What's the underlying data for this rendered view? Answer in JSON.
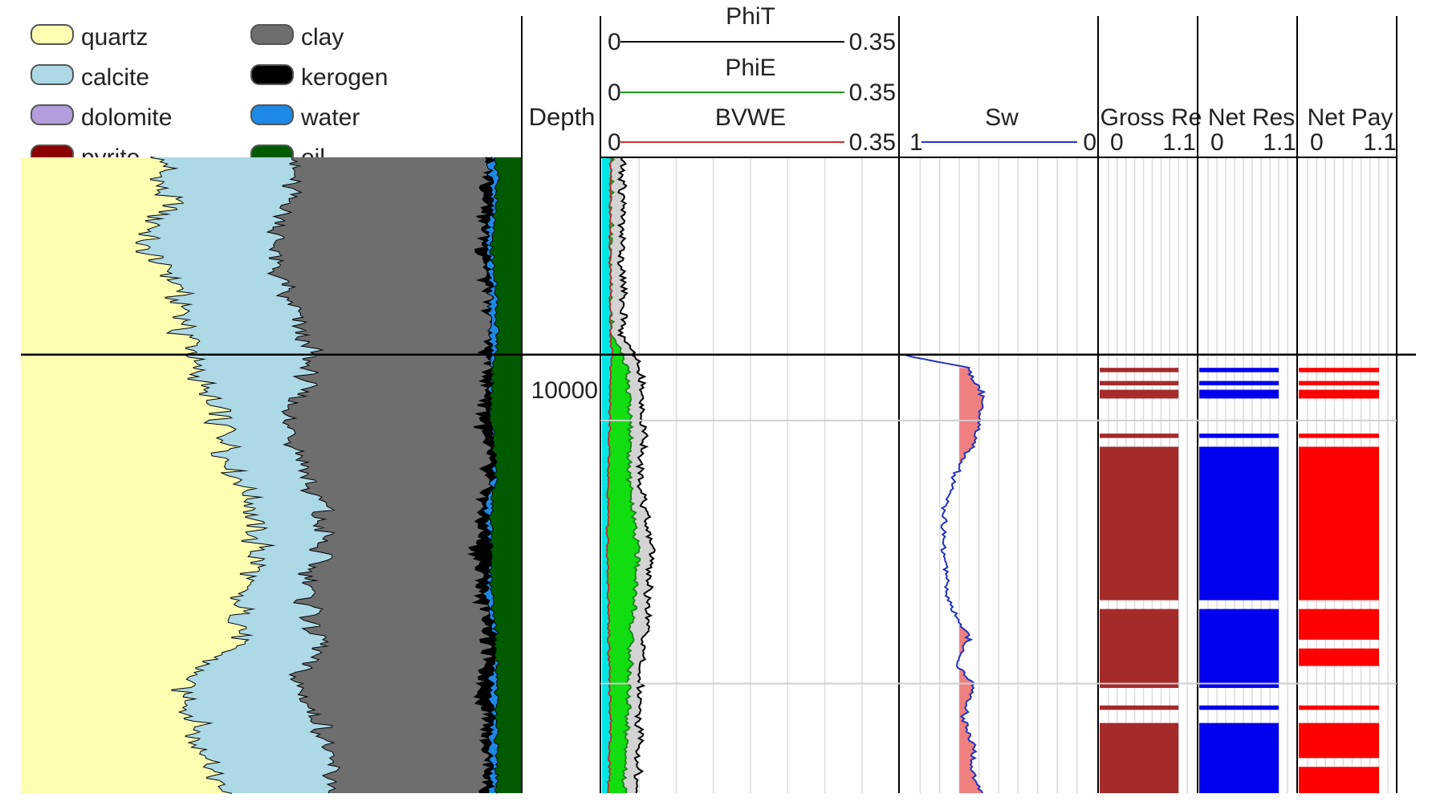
{
  "chart_data": {
    "type": "area",
    "legend": {
      "placement": "top-left",
      "items": [
        {
          "label": "quartz",
          "color": "#FFFFB2"
        },
        {
          "label": "calcite",
          "color": "#ADD8E6"
        },
        {
          "label": "dolomite",
          "color": "#B39DDB"
        },
        {
          "label": "pyrite",
          "color": "#8B0000"
        },
        {
          "label": "clay",
          "color": "#6E6E6E"
        },
        {
          "label": "kerogen",
          "color": "#000000"
        },
        {
          "label": "water",
          "color": "#1E88E5"
        },
        {
          "label": "oil",
          "color": "#005A00"
        }
      ]
    },
    "depth": {
      "header": "Depth",
      "range": [
        9940,
        10085
      ],
      "ticks": [
        10000,
        10060
      ],
      "tick_labels": [
        "10000",
        ""
      ],
      "marker_line": 9985
    },
    "depth_samples": [
      9940,
      9950,
      9960,
      9970,
      9980,
      9985,
      9990,
      10000,
      10010,
      10020,
      10030,
      10040,
      10050,
      10060,
      10070,
      10080,
      10085
    ],
    "lithology_track": {
      "stack_order": [
        "quartz",
        "calcite",
        "clay",
        "kerogen",
        "water",
        "oil"
      ],
      "x_range": [
        0,
        1
      ],
      "cumulative": {
        "quartz": [
          0.28,
          0.3,
          0.25,
          0.31,
          0.33,
          0.34,
          0.36,
          0.4,
          0.42,
          0.46,
          0.48,
          0.43,
          0.45,
          0.33,
          0.35,
          0.38,
          0.4
        ],
        "calcite": [
          0.55,
          0.54,
          0.5,
          0.53,
          0.56,
          0.58,
          0.57,
          0.53,
          0.56,
          0.6,
          0.6,
          0.57,
          0.6,
          0.55,
          0.6,
          0.62,
          0.63
        ],
        "clay": [
          0.93,
          0.93,
          0.92,
          0.93,
          0.94,
          0.93,
          0.93,
          0.92,
          0.93,
          0.92,
          0.91,
          0.92,
          0.93,
          0.92,
          0.93,
          0.93,
          0.93
        ],
        "kerogen": [
          0.94,
          0.94,
          0.93,
          0.94,
          0.94,
          0.94,
          0.94,
          0.94,
          0.95,
          0.93,
          0.94,
          0.93,
          0.95,
          0.94,
          0.94,
          0.94,
          0.94
        ],
        "water": [
          0.95,
          0.95,
          0.94,
          0.95,
          0.95,
          0.95,
          0.94,
          0.94,
          0.95,
          0.94,
          0.94,
          0.94,
          0.95,
          0.95,
          0.95,
          0.95,
          0.95
        ],
        "oil": [
          1,
          1,
          1,
          1,
          1,
          1,
          1,
          1,
          1,
          1,
          1,
          1,
          1,
          1,
          1,
          1,
          1
        ]
      }
    },
    "porosity_track": {
      "x_range": [
        0,
        0.35
      ],
      "headers": [
        {
          "name": "PhiT",
          "min": "0",
          "max": "0.35",
          "color": "#000000"
        },
        {
          "name": "PhiE",
          "min": "0",
          "max": "0.35",
          "color": "#1E9E1E"
        },
        {
          "name": "BVWE",
          "min": "0",
          "max": "0.35",
          "color": "#D03030"
        }
      ],
      "fills": {
        "bvwe": "#00E5E5",
        "phie": "#11DD11",
        "phit": "#D3D3D3"
      },
      "curves": {
        "PhiT": [
          0.025,
          0.025,
          0.023,
          0.025,
          0.024,
          0.04,
          0.045,
          0.05,
          0.045,
          0.05,
          0.06,
          0.055,
          0.05,
          0.045,
          0.045,
          0.043,
          0.04
        ],
        "PhiE": [
          0.01,
          0.01,
          0.009,
          0.01,
          0.01,
          0.025,
          0.03,
          0.035,
          0.032,
          0.036,
          0.042,
          0.038,
          0.034,
          0.032,
          0.03,
          0.028,
          0.026
        ],
        "BVWE": [
          0.01,
          0.01,
          0.009,
          0.01,
          0.01,
          0.012,
          0.01,
          0.009,
          0.008,
          0.007,
          0.006,
          0.007,
          0.008,
          0.009,
          0.01,
          0.008,
          0.007
        ]
      }
    },
    "saturation_track": {
      "x_range": [
        1,
        0
      ],
      "header": {
        "name": "Sw",
        "min": "1",
        "max": "0",
        "color": "#2233BB"
      },
      "fill": "#F08080",
      "start_depth": 9985,
      "depth_samples": [
        9985,
        9988,
        9995,
        10000,
        10005,
        10010,
        10020,
        10030,
        10040,
        10050,
        10055,
        10060,
        10068,
        10075,
        10080,
        10085
      ],
      "curve": [
        0.99,
        0.66,
        0.57,
        0.6,
        0.62,
        0.7,
        0.78,
        0.78,
        0.76,
        0.65,
        0.72,
        0.63,
        0.68,
        0.62,
        0.64,
        0.58
      ]
    },
    "flag_tracks": [
      {
        "name": "Gross Re",
        "min": "0",
        "max": "1.1",
        "color": "#A52A2A",
        "intervals": [
          [
            9988,
            9989
          ],
          [
            9991,
            9992
          ],
          [
            9993,
            9995
          ],
          [
            10003,
            10004
          ],
          [
            10006,
            10041
          ],
          [
            10043,
            10061
          ],
          [
            10065,
            10066
          ],
          [
            10069,
            10085
          ]
        ]
      },
      {
        "name": "Net Res",
        "min": "0",
        "max": "1.1",
        "color": "#0000EE",
        "intervals": [
          [
            9988,
            9989
          ],
          [
            9991,
            9992
          ],
          [
            9993,
            9995
          ],
          [
            10003,
            10004
          ],
          [
            10006,
            10041
          ],
          [
            10043,
            10061
          ],
          [
            10065,
            10066
          ],
          [
            10069,
            10085
          ]
        ]
      },
      {
        "name": "Net Pay",
        "min": "0",
        "max": "1.1",
        "color": "#FF0000",
        "intervals": [
          [
            9988,
            9989
          ],
          [
            9991,
            9992
          ],
          [
            9993,
            9995
          ],
          [
            10003,
            10004
          ],
          [
            10006,
            10041
          ],
          [
            10043,
            10050
          ],
          [
            10052,
            10056
          ],
          [
            10065,
            10066
          ],
          [
            10069,
            10077
          ],
          [
            10079,
            10085
          ]
        ]
      }
    ],
    "grid": true
  }
}
